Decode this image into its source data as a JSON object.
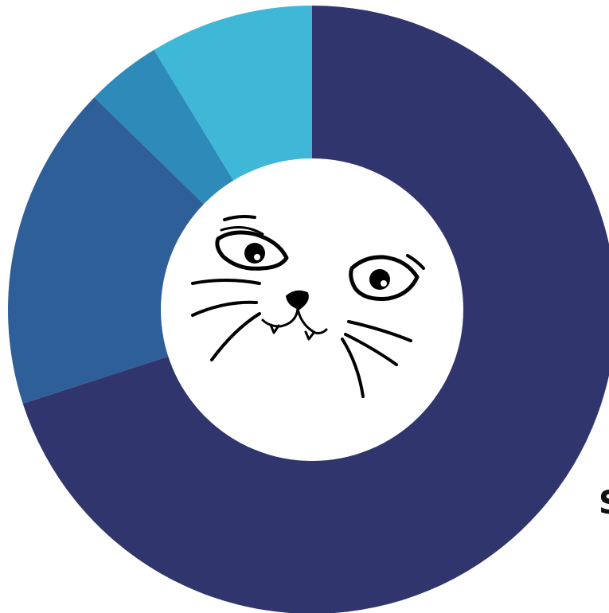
{
  "chart_data": {
    "type": "pie",
    "variant": "donut",
    "start_angle_deg": 0,
    "direction": "clockwise",
    "slices": [
      {
        "value": 70.0,
        "color": "#31356D"
      },
      {
        "value": 17.3,
        "color": "#2E5F98"
      },
      {
        "value": 4.0,
        "color": "#2E8AB9"
      },
      {
        "value": 8.7,
        "color": "#3FB7D6"
      }
    ],
    "legend": "none",
    "center_image": "cat-face-icon"
  },
  "labels": {
    "right_edge_text": "S"
  }
}
